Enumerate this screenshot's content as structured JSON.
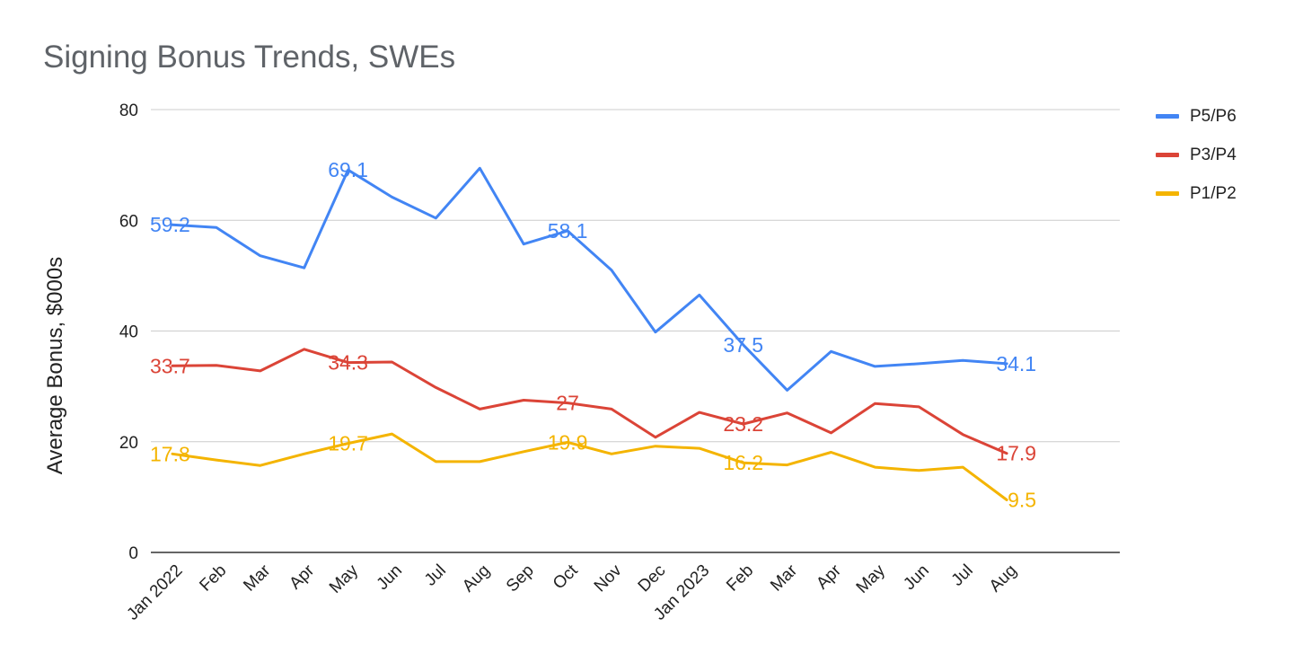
{
  "chart_data": {
    "type": "line",
    "title": "Signing Bonus Trends, SWEs",
    "xlabel": "",
    "ylabel": "Average Bonus, $000s",
    "ylim": [
      0,
      80
    ],
    "yticks": [
      0,
      20,
      40,
      60,
      80
    ],
    "grid": true,
    "legend_position": "top-right",
    "categories": [
      "Jan 2022",
      "Feb",
      "Mar",
      "Apr",
      "May",
      "Jun",
      "Jul",
      "Aug",
      "Sep",
      "Oct",
      "Nov",
      "Dec",
      "Jan 2023",
      "Feb",
      "Mar",
      "Apr",
      "May",
      "Jun",
      "Jul",
      "Aug"
    ],
    "series": [
      {
        "name": "P5/P6",
        "color": "#4285f4",
        "values": [
          59.2,
          58.7,
          53.6,
          51.4,
          69.1,
          64.2,
          60.4,
          69.4,
          55.7,
          58.1,
          51.0,
          39.8,
          46.5,
          37.5,
          29.3,
          36.3,
          33.6,
          34.1,
          34.7,
          34.1
        ],
        "labels": [
          {
            "index": 0,
            "text": "59.2"
          },
          {
            "index": 4,
            "text": "69.1"
          },
          {
            "index": 9,
            "text": "58.1"
          },
          {
            "index": 13,
            "text": "37.5"
          },
          {
            "index": 19,
            "text": "34.1"
          }
        ]
      },
      {
        "name": "P3/P4",
        "color": "#db4437",
        "values": [
          33.7,
          33.8,
          32.8,
          36.7,
          34.3,
          34.4,
          29.8,
          25.9,
          27.5,
          27.0,
          25.9,
          20.8,
          25.3,
          23.2,
          25.2,
          21.6,
          26.9,
          26.3,
          21.3,
          17.9
        ],
        "labels": [
          {
            "index": 0,
            "text": "33.7"
          },
          {
            "index": 4,
            "text": "34.3"
          },
          {
            "index": 9,
            "text": "27"
          },
          {
            "index": 13,
            "text": "23.2"
          },
          {
            "index": 19,
            "text": "17.9"
          }
        ]
      },
      {
        "name": "P1/P2",
        "color": "#f4b400",
        "values": [
          17.8,
          16.7,
          15.7,
          17.8,
          19.7,
          21.4,
          16.4,
          16.4,
          18.2,
          19.9,
          17.8,
          19.2,
          18.8,
          16.2,
          15.8,
          18.1,
          15.4,
          14.8,
          15.4,
          9.5
        ],
        "labels": [
          {
            "index": 0,
            "text": "17.8"
          },
          {
            "index": 4,
            "text": "19.7"
          },
          {
            "index": 9,
            "text": "19.9"
          },
          {
            "index": 13,
            "text": "16.2"
          },
          {
            "index": 19,
            "text": "9.5"
          }
        ]
      }
    ]
  }
}
